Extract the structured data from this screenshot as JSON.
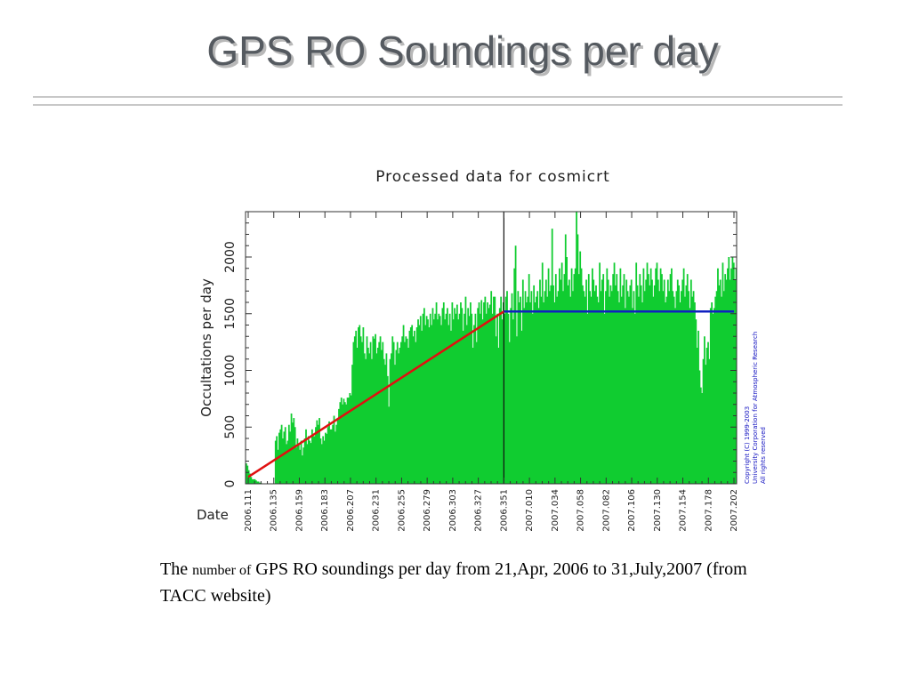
{
  "slide": {
    "title": "GPS RO Soundings per day",
    "caption_pre": "The",
    "caption_small": "number of",
    "caption_post": "GPS RO soundings per day from 21,Apr, 2006 to 31,July,2007 (from TACC website)"
  },
  "chart_data": {
    "type": "bar",
    "title": "Processed data for cosmicrt",
    "ylabel": "Occultations per day",
    "xlabel": "Date",
    "ylim": [
      0,
      2400
    ],
    "yticks": [
      0,
      500,
      1000,
      1500,
      2000
    ],
    "xticks": [
      "2006.111",
      "2006.135",
      "2006.159",
      "2006.183",
      "2006.207",
      "2006.231",
      "2006.255",
      "2006.279",
      "2006.303",
      "2006.327",
      "2006.351",
      "2007.010",
      "2007.034",
      "2007.058",
      "2007.082",
      "2007.106",
      "2007.130",
      "2007.154",
      "2007.178",
      "2007.202"
    ],
    "bar_color": "#10cc30",
    "series": [
      {
        "values": [
          180,
          160,
          120,
          90,
          60,
          40,
          40,
          40,
          30,
          20,
          20,
          10,
          10,
          0,
          0,
          0,
          0,
          0,
          0,
          0,
          0,
          0,
          0,
          0,
          380,
          420,
          300,
          450,
          480,
          520,
          400,
          460,
          500,
          350,
          380,
          520,
          460,
          620,
          540,
          580,
          500,
          320,
          400,
          350,
          300,
          380,
          250,
          320,
          400,
          480,
          350,
          420,
          380,
          360,
          480,
          420,
          420,
          500,
          560,
          520,
          580,
          400,
          350,
          420,
          380,
          450,
          440,
          500,
          550,
          480,
          480,
          520,
          600,
          460,
          520,
          580,
          660,
          720,
          760,
          700,
          750,
          720,
          700,
          760,
          760,
          800,
          780,
          1050,
          1250,
          1300,
          1350,
          1200,
          1380,
          1400,
          1300,
          1250,
          1380,
          1150,
          1100,
          1300,
          1200,
          1150,
          1250,
          1100,
          1300,
          1280,
          1320,
          1150,
          1200,
          1250,
          1300,
          1180,
          1250,
          1100,
          1050,
          1150,
          950,
          680,
          1100,
          1150,
          1300,
          1250,
          1050,
          1180,
          1250,
          1150,
          1200,
          1250,
          1300,
          1400,
          1250,
          1300,
          1280,
          1200,
          1350,
          1380,
          1400,
          1300,
          1350,
          1250,
          1380,
          1450,
          1400,
          1480,
          1350,
          1500,
          1550,
          1400,
          1480,
          1450,
          1380,
          1500,
          1400,
          1550,
          1450,
          1500,
          1600,
          1450,
          1500,
          1480,
          1400,
          1550,
          1600,
          1450,
          1500,
          1550,
          1400,
          1500,
          1350,
          1600,
          1450,
          1550,
          1500,
          1580,
          1450,
          1500,
          1600,
          1550,
          1350,
          1500,
          1650,
          1400,
          1550,
          1480,
          1600,
          1500,
          1200,
          1400,
          1500,
          1250,
          1550,
          1600,
          1500,
          1620,
          1450,
          1600,
          1650,
          1500,
          1600,
          1550,
          1580,
          1700,
          1500,
          1650,
          1650,
          1300,
          1500,
          1200,
          1550,
          1650,
          1450,
          1600,
          1500,
          1650,
          1700,
          1500,
          1250,
          1550,
          1680,
          1450,
          1900,
          2100,
          1300,
          1700,
          1600,
          1650,
          1350,
          1800,
          1550,
          1700,
          1600,
          1650,
          1850,
          1600,
          1700,
          1500,
          1750,
          1600,
          1650,
          1700,
          1550,
          1800,
          1650,
          1950,
          1600,
          1700,
          1800,
          1650,
          1900,
          1700,
          1750,
          2250,
          1750,
          1600,
          1850,
          1650,
          1700,
          1900,
          1800,
          1950,
          1700,
          1850,
          2200,
          2000,
          1750,
          1800,
          1650,
          1900,
          1700,
          1850,
          1900,
          2400,
          2200,
          1850,
          2050,
          1900,
          1750,
          1700,
          1650,
          1800,
          1500,
          1850,
          1700,
          1650,
          1900,
          1800,
          1700,
          1750,
          1650,
          1600,
          1950,
          1700,
          1800,
          1850,
          1500,
          1700,
          1900,
          1800,
          1650,
          1750,
          1700,
          1850,
          1950,
          1750,
          1850,
          1700,
          1600,
          1900,
          1650,
          1750,
          1850,
          1550,
          1800,
          1700,
          1650,
          1750,
          1800,
          1550,
          1700,
          1500,
          1950,
          1750,
          1650,
          1850,
          1750,
          1600,
          1900,
          1700,
          1800,
          1950,
          1850,
          1750,
          1900,
          1800,
          1650,
          1750,
          1900,
          1950,
          1800,
          1700,
          1900,
          1850,
          1700,
          1800,
          1600,
          1650,
          1800,
          1700,
          1850,
          1900,
          1700,
          1650,
          1550,
          1700,
          1800,
          1750,
          1600,
          1700,
          1800,
          1900,
          1650,
          1750,
          1850,
          1700,
          1550,
          1800,
          1650,
          1700,
          1600,
          1450,
          1200,
          1350,
          1000,
          850,
          800,
          1100,
          1300,
          1050,
          1200,
          1250,
          1100,
          1550,
          1600,
          1500,
          1550,
          1650,
          1700,
          1900,
          1750,
          1800,
          1650,
          1950,
          1700,
          1850,
          1800,
          1900,
          2000,
          1800,
          1900,
          2000,
          1950,
          1800,
          1900
        ]
      }
    ],
    "divider_x": "2006.351",
    "trend_red": {
      "from": {
        "x": "2006.111",
        "y": 60
      },
      "to": {
        "x": "2006.351",
        "y": 1520
      },
      "color": "#e01010"
    },
    "trend_blue": {
      "from": {
        "x": "2006.351",
        "y": 1520
      },
      "to": {
        "x": "2007.202",
        "y": 1520
      },
      "color": "#1020c0"
    },
    "copyright": [
      "Copyright (C) 1999-2003",
      "University Corporation for Atmospheric Research",
      "All rights reserved"
    ],
    "copyright_color": "#1010c0"
  }
}
